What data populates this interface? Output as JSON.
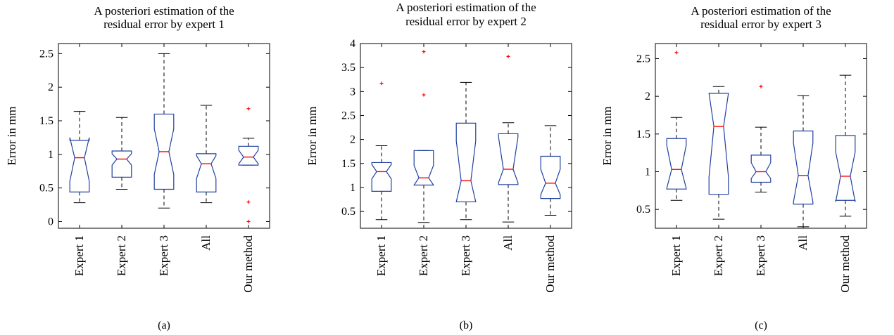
{
  "chart_data": [
    {
      "type": "boxplot",
      "panel_label": "(a)",
      "title": [
        "A posteriori estimation of the",
        "residual error by expert 1"
      ],
      "ylabel": "Error in mm",
      "ylim": [
        -0.1,
        2.65
      ],
      "yticks": [
        0,
        0.5,
        1,
        1.5,
        2,
        2.5
      ],
      "ytick_labels": [
        "0",
        "0.5",
        "1",
        "1.5",
        "2",
        "2.5"
      ],
      "notched": true,
      "colors": {
        "box": "#2040a0",
        "median": "#ff0000",
        "whisker": "#000000",
        "outlier": "#ff0000"
      },
      "categories": [
        "Expert 1",
        "Expert 2",
        "Expert 3",
        "All",
        "Our method"
      ],
      "boxes": [
        {
          "whisker_low": 0.28,
          "q1": 0.44,
          "median": 0.95,
          "q3": 1.21,
          "whisker_high": 1.64,
          "notch_low": 0.6,
          "notch_high": 1.25,
          "outliers": []
        },
        {
          "whisker_low": 0.48,
          "q1": 0.66,
          "median": 0.93,
          "q3": 1.05,
          "whisker_high": 1.55,
          "notch_low": 0.84,
          "notch_high": 1.01,
          "outliers": []
        },
        {
          "whisker_low": 0.2,
          "q1": 0.48,
          "median": 1.04,
          "q3": 1.6,
          "whisker_high": 2.5,
          "notch_low": 0.7,
          "notch_high": 1.38,
          "outliers": []
        },
        {
          "whisker_low": 0.28,
          "q1": 0.44,
          "median": 0.86,
          "q3": 1.01,
          "whisker_high": 1.73,
          "notch_low": 0.64,
          "notch_high": 0.98,
          "outliers": []
        },
        {
          "whisker_low": 0.84,
          "q1": 0.84,
          "median": 0.96,
          "q3": 1.12,
          "whisker_high": 1.24,
          "notch_low": 0.86,
          "notch_high": 1.06,
          "outliers": [
            1.68,
            0.29,
            0.0
          ]
        }
      ]
    },
    {
      "type": "boxplot",
      "panel_label": "(b)",
      "title": [
        "A posteriori estimation of the",
        "residual error by expert 2"
      ],
      "ylabel": "Error in mm",
      "ylim": [
        0.15,
        4.0
      ],
      "yticks": [
        0.5,
        1,
        1.5,
        2,
        2.5,
        3,
        3.5,
        4
      ],
      "ytick_labels": [
        "0.5",
        "1",
        "1.5",
        "2",
        "2.5",
        "3",
        "3.5",
        "4"
      ],
      "notched": true,
      "colors": {
        "box": "#2040a0",
        "median": "#ff0000",
        "whisker": "#000000",
        "outlier": "#ff0000"
      },
      "categories": [
        "Expert 1",
        "Expert 2",
        "Expert 3",
        "All",
        "Our method"
      ],
      "boxes": [
        {
          "whisker_low": 0.33,
          "q1": 0.92,
          "median": 1.33,
          "q3": 1.52,
          "whisker_high": 1.87,
          "notch_low": 1.18,
          "notch_high": 1.48,
          "outliers": [
            3.17
          ]
        },
        {
          "whisker_low": 0.27,
          "q1": 1.05,
          "median": 1.2,
          "q3": 1.77,
          "whisker_high": 1.77,
          "notch_low": 1.05,
          "notch_high": 1.46,
          "outliers": [
            3.83,
            2.93
          ]
        },
        {
          "whisker_low": 0.33,
          "q1": 0.7,
          "median": 1.14,
          "q3": 2.34,
          "whisker_high": 3.19,
          "notch_low": 0.7,
          "notch_high": 1.97,
          "outliers": []
        },
        {
          "whisker_low": 0.28,
          "q1": 1.06,
          "median": 1.38,
          "q3": 2.12,
          "whisker_high": 2.35,
          "notch_low": 1.1,
          "notch_high": 2.05,
          "outliers": [
            3.73
          ]
        },
        {
          "whisker_low": 0.42,
          "q1": 0.77,
          "median": 1.09,
          "q3": 1.65,
          "whisker_high": 2.29,
          "notch_low": 0.85,
          "notch_high": 1.38,
          "outliers": []
        }
      ]
    },
    {
      "type": "boxplot",
      "panel_label": "(c)",
      "title": [
        "A posteriori estimation of the",
        "residual error by expert 3"
      ],
      "ylabel": "Error in mm",
      "ylim": [
        0.25,
        2.7
      ],
      "yticks": [
        0.5,
        1,
        1.5,
        2,
        2.5
      ],
      "ytick_labels": [
        "0.5",
        "1",
        "1.5",
        "2",
        "2.5"
      ],
      "notched": true,
      "colors": {
        "box": "#2040a0",
        "median": "#ff0000",
        "whisker": "#000000",
        "outlier": "#ff0000"
      },
      "categories": [
        "Expert 1",
        "Expert 2",
        "Expert 3",
        "All",
        "Our method"
      ],
      "boxes": [
        {
          "whisker_low": 0.62,
          "q1": 0.77,
          "median": 1.03,
          "q3": 1.44,
          "whisker_high": 1.72,
          "notch_low": 0.78,
          "notch_high": 1.35,
          "outliers": [
            2.58
          ]
        },
        {
          "whisker_low": 0.37,
          "q1": 0.7,
          "median": 1.6,
          "q3": 2.04,
          "whisker_high": 2.13,
          "notch_low": 0.93,
          "notch_high": 2.04,
          "outliers": []
        },
        {
          "whisker_low": 0.73,
          "q1": 0.86,
          "median": 1.0,
          "q3": 1.22,
          "whisker_high": 1.59,
          "notch_low": 0.91,
          "notch_high": 1.12,
          "outliers": [
            2.13
          ]
        },
        {
          "whisker_low": 0.27,
          "q1": 0.57,
          "median": 0.95,
          "q3": 1.54,
          "whisker_high": 2.01,
          "notch_low": 0.6,
          "notch_high": 1.38,
          "outliers": []
        },
        {
          "whisker_low": 0.41,
          "q1": 0.62,
          "median": 0.94,
          "q3": 1.48,
          "whisker_high": 2.28,
          "notch_low": 0.6,
          "notch_high": 1.26,
          "outliers": []
        }
      ]
    }
  ]
}
